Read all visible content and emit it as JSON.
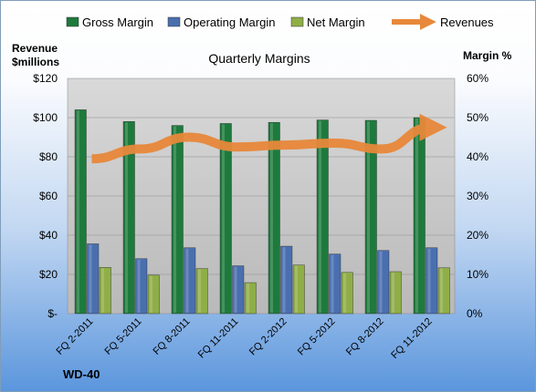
{
  "chart_data": {
    "type": "bar",
    "title": "Quarterly Margins",
    "left_axis_title": [
      "Revenue",
      "$millions"
    ],
    "right_axis_title": "Margin %",
    "corner_label": "WD-40",
    "categories": [
      "FQ 2-2011",
      "FQ 5-2011",
      "FQ 8-2011",
      "FQ 11-2011",
      "FQ 2-2012",
      "FQ 5-2012",
      "FQ 8-2012",
      "FQ 11-2012"
    ],
    "series": [
      {
        "name": "Gross Margin",
        "axis": "right",
        "kind": "bar",
        "color": "#1e7a3c",
        "values": [
          52,
          49,
          48,
          48.5,
          48.8,
          49.4,
          49.3,
          50
        ]
      },
      {
        "name": "Operating Margin",
        "axis": "right",
        "kind": "bar",
        "color": "#4a6faf",
        "values": [
          17.8,
          14,
          16.8,
          12.2,
          17.2,
          15.2,
          16.1,
          16.8
        ]
      },
      {
        "name": "Net Margin",
        "axis": "right",
        "kind": "bar",
        "color": "#8fae47",
        "values": [
          11.8,
          9.8,
          11.5,
          7.9,
          12.4,
          10.5,
          10.7,
          11.7
        ]
      },
      {
        "name": "Revenues",
        "axis": "left",
        "kind": "line",
        "color": "#e8883a",
        "values": [
          79,
          84,
          90,
          85,
          86,
          87,
          84,
          95
        ]
      }
    ],
    "left_axis": {
      "min": 0,
      "max": 120,
      "ticks": [
        "$-",
        "$20",
        "$40",
        "$60",
        "$80",
        "$100",
        "$120"
      ]
    },
    "right_axis": {
      "min": 0,
      "max": 60,
      "ticks": [
        "0%",
        "10%",
        "20%",
        "30%",
        "40%",
        "50%",
        "60%"
      ]
    },
    "grid": true,
    "legend": "top",
    "plot_background": "#c9c9c9"
  }
}
